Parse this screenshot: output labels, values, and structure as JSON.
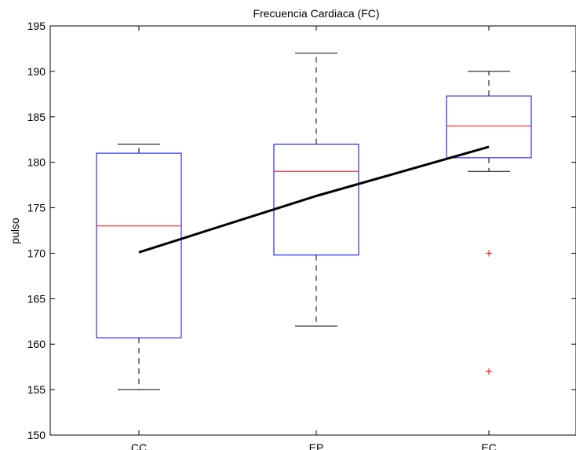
{
  "chart_data": {
    "type": "boxplot",
    "title": "Frecuencia Cardiaca (FC)",
    "xlabel": "",
    "ylabel": "pulso",
    "ylim": [
      150,
      195
    ],
    "yticks": [
      150,
      155,
      160,
      165,
      170,
      175,
      180,
      185,
      190,
      195
    ],
    "categories": [
      "CC",
      "EP",
      "EC"
    ],
    "boxes": [
      {
        "category": "CC",
        "whisker_low": 155,
        "q1": 160.7,
        "median": 173,
        "q3": 181,
        "whisker_high": 182,
        "outliers": []
      },
      {
        "category": "EP",
        "whisker_low": 162,
        "q1": 169.8,
        "median": 179,
        "q3": 182,
        "whisker_high": 192,
        "outliers": []
      },
      {
        "category": "EC",
        "whisker_low": 179,
        "q1": 180.5,
        "median": 184,
        "q3": 187.3,
        "whisker_high": 190,
        "outliers": [
          170,
          157
        ]
      }
    ],
    "mean_line": {
      "values": [
        170.1,
        176.3,
        181.7
      ]
    },
    "colors": {
      "box": "#0000ff",
      "median": "#ff0000",
      "whisker": "#000000",
      "outlier": "#ff0000",
      "mean_line": "#000000",
      "axis": "#000000"
    },
    "grid": false
  }
}
